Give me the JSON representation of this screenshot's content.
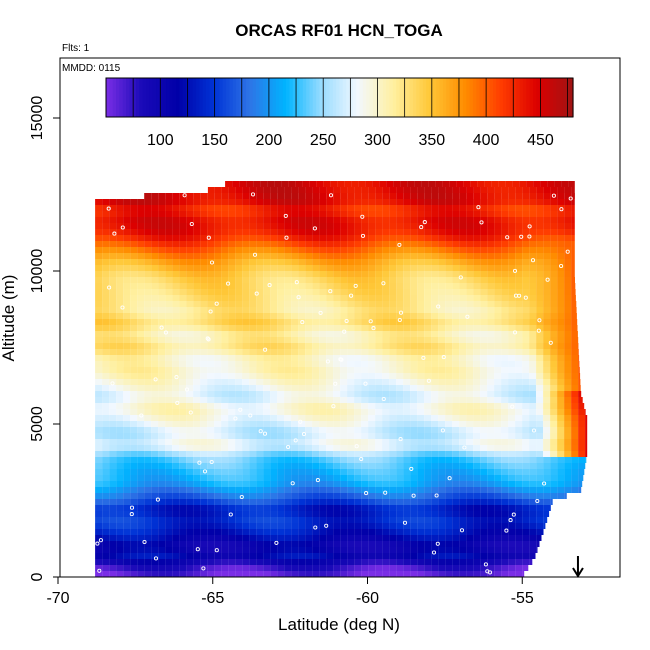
{
  "chart_data": {
    "type": "heatmap",
    "title": "ORCAS RF01 HCN_TOGA",
    "xlabel": "Latitude (deg N)",
    "ylabel": "Altitude (m)",
    "xlim": [
      -70,
      -52
    ],
    "ylim": [
      0,
      16500
    ],
    "x_ticks": [
      -70,
      -65,
      -60,
      -55
    ],
    "x_tick_labels": [
      "-70",
      "-65",
      "-60",
      "-55"
    ],
    "y_ticks": [
      0,
      5000,
      10000,
      15000
    ],
    "y_tick_labels": [
      "0",
      "5000",
      "10000",
      "15000"
    ],
    "annotations": {
      "flights": "Flts: 1",
      "date": "MMDD: 0115"
    },
    "colorbar": {
      "range": [
        50,
        480
      ],
      "ticks": [
        100,
        150,
        200,
        250,
        300,
        350,
        400,
        450
      ],
      "tick_labels": [
        "100",
        "150",
        "200",
        "250",
        "300",
        "350",
        "400",
        "450"
      ],
      "colors": [
        "#7a2ee6",
        "#1a0ab8",
        "#0000a8",
        "#0033d6",
        "#2e74e6",
        "#00b4ff",
        "#99dcff",
        "#f2f8ff",
        "#fff0a0",
        "#ffc838",
        "#ff8c00",
        "#ff3c00",
        "#dc0000",
        "#a01414"
      ]
    },
    "grid": false,
    "domain_bounds": [
      [
        0,
        -68.8,
        -55.0
      ],
      [
        600,
        -68.8,
        -54.6
      ],
      [
        1500,
        -68.8,
        -54.3
      ],
      [
        2500,
        -68.8,
        -54.0
      ],
      [
        2800,
        -68.8,
        -53.1
      ],
      [
        4000,
        -68.8,
        -52.9
      ],
      [
        5200,
        -68.8,
        -52.9
      ],
      [
        6000,
        -68.8,
        -53.1
      ],
      [
        9800,
        -68.8,
        -53.3
      ],
      [
        11800,
        -68.8,
        -53.3
      ],
      [
        12300,
        -68.8,
        -53.3
      ],
      [
        12700,
        -64.6,
        -53.3
      ]
    ],
    "profile": [
      [
        0,
        55
      ],
      [
        300,
        75
      ],
      [
        700,
        120
      ],
      [
        1000,
        100
      ],
      [
        1400,
        130
      ],
      [
        1800,
        150
      ],
      [
        2200,
        135
      ],
      [
        2600,
        175
      ],
      [
        3100,
        215
      ],
      [
        3500,
        225
      ],
      [
        3900,
        240
      ],
      [
        4300,
        285
      ],
      [
        4700,
        265
      ],
      [
        5100,
        285
      ],
      [
        5500,
        300
      ],
      [
        5900,
        275
      ],
      [
        6300,
        290
      ],
      [
        6700,
        305
      ],
      [
        7100,
        300
      ],
      [
        7500,
        325
      ],
      [
        7900,
        310
      ],
      [
        8300,
        335
      ],
      [
        8700,
        320
      ],
      [
        9200,
        330
      ],
      [
        9800,
        340
      ],
      [
        10300,
        365
      ],
      [
        10700,
        395
      ],
      [
        11200,
        435
      ],
      [
        11600,
        445
      ],
      [
        12000,
        425
      ],
      [
        12300,
        450
      ]
    ],
    "eastern_edge_values": [
      [
        6000,
        440
      ],
      [
        4500,
        400
      ]
    ],
    "arrow_marker_latitude": -53.2
  }
}
